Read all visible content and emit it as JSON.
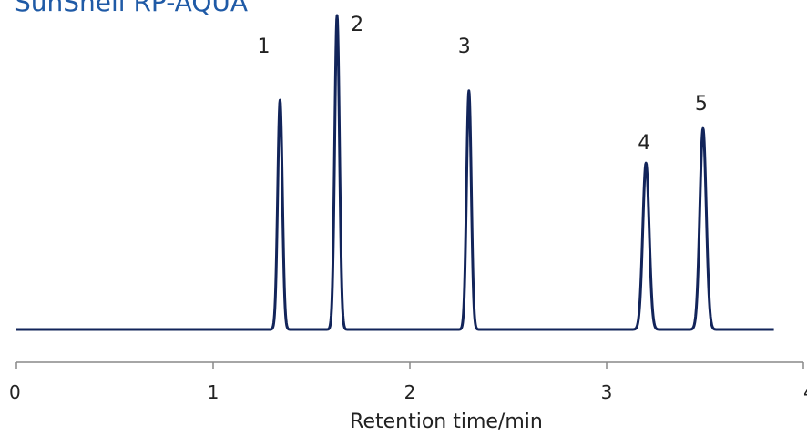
{
  "chart_data": {
    "type": "line",
    "title": "SunShell RP-AQUA",
    "xlabel": "Retention time/min",
    "ylabel": "",
    "xlim": [
      0,
      4
    ],
    "x_ticks": [
      "0",
      "1",
      "2",
      "3",
      "4"
    ],
    "y_axis_visible": false,
    "grid": false,
    "baseline": 0,
    "line_color": "#12245a",
    "title_color": "#1f5aa6",
    "trace_end": 3.85,
    "series": [
      {
        "values_description_note": null,
        "peaks": [
          {
            "label": "1",
            "retention_time": 1.34,
            "height": 0.73
          },
          {
            "label": "2",
            "retention_time": 1.63,
            "height": 1.0
          },
          {
            "label": "3",
            "retention_time": 2.3,
            "height": 0.76
          },
          {
            "label": "4",
            "retention_time": 3.2,
            "height": 0.53
          },
          {
            "label": "5",
            "retention_time": 3.49,
            "height": 0.64
          }
        ]
      }
    ]
  }
}
